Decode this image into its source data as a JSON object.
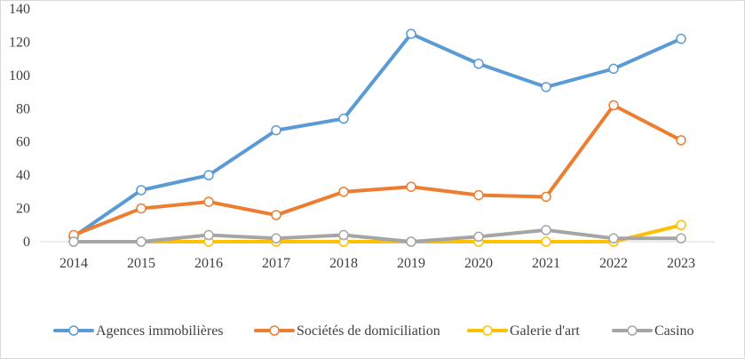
{
  "chart_data": {
    "type": "line",
    "categories": [
      "2014",
      "2015",
      "2016",
      "2017",
      "2018",
      "2019",
      "2020",
      "2021",
      "2022",
      "2023"
    ],
    "ylim": [
      0,
      140
    ],
    "y_ticks": [
      0,
      20,
      40,
      60,
      80,
      100,
      120,
      140
    ],
    "grid": false,
    "legend_position": "bottom",
    "series": [
      {
        "name": "Agences immobilières",
        "color": "#5b9bd5",
        "values": [
          3,
          31,
          40,
          67,
          74,
          125,
          107,
          93,
          104,
          122
        ]
      },
      {
        "name": "Sociétés de domiciliation",
        "color": "#ed7d31",
        "values": [
          4,
          20,
          24,
          16,
          30,
          33,
          28,
          27,
          82,
          61
        ]
      },
      {
        "name": "Galerie d'art",
        "color": "#ffc000",
        "values": [
          0,
          0,
          0,
          0,
          0,
          0,
          0,
          0,
          0,
          10
        ]
      },
      {
        "name": "Casino",
        "color": "#a5a5a5",
        "values": [
          0,
          0,
          4,
          2,
          4,
          0,
          3,
          7,
          2,
          2
        ]
      }
    ]
  }
}
